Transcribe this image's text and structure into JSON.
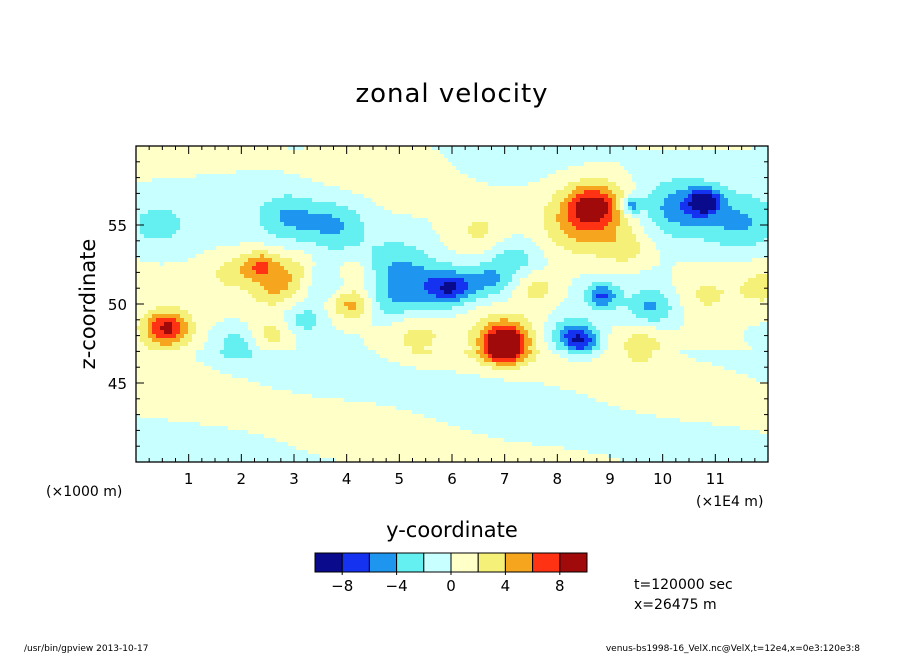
{
  "chart_data": {
    "type": "heatmap",
    "title": "zonal velocity",
    "xlabel": "y-coordinate",
    "ylabel": "z-coordinate",
    "x_unit_label": "(×1E4 m)",
    "y_unit_label": "(×1000 m)",
    "xlim": [
      0,
      12
    ],
    "ylim": [
      40,
      60
    ],
    "x_ticks": [
      1,
      2,
      3,
      4,
      5,
      6,
      7,
      8,
      9,
      10,
      11
    ],
    "y_ticks": [
      45,
      50,
      55
    ],
    "colorbar": {
      "levels": [
        -10,
        -8,
        -6,
        -4,
        -2,
        0,
        2,
        4,
        6,
        8,
        10
      ],
      "labels": [
        -8,
        -4,
        0,
        4,
        8
      ],
      "colors": [
        "#0a0a8c",
        "#1432f0",
        "#1e96f0",
        "#64f0f0",
        "#c8ffff",
        "#ffffc8",
        "#f5f078",
        "#f5a51e",
        "#ff3214",
        "#a00a0a"
      ]
    },
    "blobs": [
      {
        "y": 7.0,
        "z": 47.3,
        "r": 0.38,
        "v": 10
      },
      {
        "y": 7.0,
        "z": 48.0,
        "r": 0.55,
        "v": 5
      },
      {
        "y": 0.6,
        "z": 48.5,
        "r": 0.4,
        "v": 6
      },
      {
        "y": 0.5,
        "z": 48.3,
        "r": 0.6,
        "v": 3
      },
      {
        "y": 8.7,
        "z": 56.3,
        "r": 0.55,
        "v": 7
      },
      {
        "y": 8.5,
        "z": 55.0,
        "r": 0.75,
        "v": 4
      },
      {
        "y": 2.35,
        "z": 52.5,
        "r": 0.35,
        "v": 5
      },
      {
        "y": 2.6,
        "z": 51.0,
        "r": 0.45,
        "v": 3
      },
      {
        "y": 4.1,
        "z": 50.0,
        "r": 0.38,
        "v": 5
      },
      {
        "y": 4.1,
        "z": 52.0,
        "r": 0.35,
        "v": 3
      },
      {
        "y": 3.0,
        "z": 52.0,
        "r": 0.5,
        "v": 3
      },
      {
        "y": 1.8,
        "z": 52.0,
        "r": 0.4,
        "v": 2.5
      },
      {
        "y": 2.6,
        "z": 48.0,
        "r": 0.4,
        "v": 3
      },
      {
        "y": 9.6,
        "z": 47.5,
        "r": 0.5,
        "v": 3
      },
      {
        "y": 7.6,
        "z": 51.0,
        "r": 0.4,
        "v": 3
      },
      {
        "y": 9.3,
        "z": 53.5,
        "r": 0.45,
        "v": 2.5
      },
      {
        "y": 10.8,
        "z": 50.5,
        "r": 0.6,
        "v": 2.5
      },
      {
        "y": 11.9,
        "z": 51.0,
        "r": 0.5,
        "v": 2.5
      },
      {
        "y": 6.5,
        "z": 54.5,
        "r": 0.6,
        "v": 2.5
      },
      {
        "y": 5.3,
        "z": 48.0,
        "r": 0.6,
        "v": 2.3
      },
      {
        "y": 10.3,
        "z": 56.0,
        "r": 0.7,
        "v": -5
      },
      {
        "y": 10.8,
        "z": 56.5,
        "r": 0.3,
        "v": -8
      },
      {
        "y": 11.5,
        "z": 55.0,
        "r": 0.7,
        "v": -4
      },
      {
        "y": 9.4,
        "z": 56.2,
        "r": 0.2,
        "v": -6
      },
      {
        "y": 8.3,
        "z": 48.0,
        "r": 0.4,
        "v": -6
      },
      {
        "y": 8.5,
        "z": 47.5,
        "r": 0.3,
        "v": -4
      },
      {
        "y": 8.85,
        "z": 50.5,
        "r": 0.3,
        "v": -6
      },
      {
        "y": 6.0,
        "z": 51.0,
        "r": 0.4,
        "v": -6
      },
      {
        "y": 5.5,
        "z": 51.0,
        "r": 0.6,
        "v": -4
      },
      {
        "y": 3.8,
        "z": 55.0,
        "r": 0.6,
        "v": -4
      },
      {
        "y": 2.9,
        "z": 55.5,
        "r": 0.6,
        "v": -4
      },
      {
        "y": 3.6,
        "z": 51.5,
        "r": 0.5,
        "v": -3
      },
      {
        "y": 0.4,
        "z": 55.0,
        "r": 0.5,
        "v": -3
      },
      {
        "y": 7.2,
        "z": 53.0,
        "r": 0.5,
        "v": -3
      },
      {
        "y": 9.8,
        "z": 49.8,
        "r": 0.45,
        "v": -4
      },
      {
        "y": 1.9,
        "z": 47.5,
        "r": 0.4,
        "v": -3
      },
      {
        "y": 6.7,
        "z": 51.5,
        "r": 0.45,
        "v": -4
      },
      {
        "y": 4.9,
        "z": 52.5,
        "r": 0.6,
        "v": -3
      },
      {
        "y": 4.8,
        "z": 50.0,
        "r": 0.5,
        "v": -3
      },
      {
        "y": 3.2,
        "z": 49.0,
        "r": 0.4,
        "v": -3
      }
    ]
  },
  "info": {
    "time": "t=120000 sec",
    "position": "x=26475 m"
  },
  "footer": {
    "left": "/usr/bin/gpview  2013-10-17",
    "right": "venus-bs1998-16_VelX.nc@VelX,t=12e4,x=0e3:120e3:8"
  }
}
